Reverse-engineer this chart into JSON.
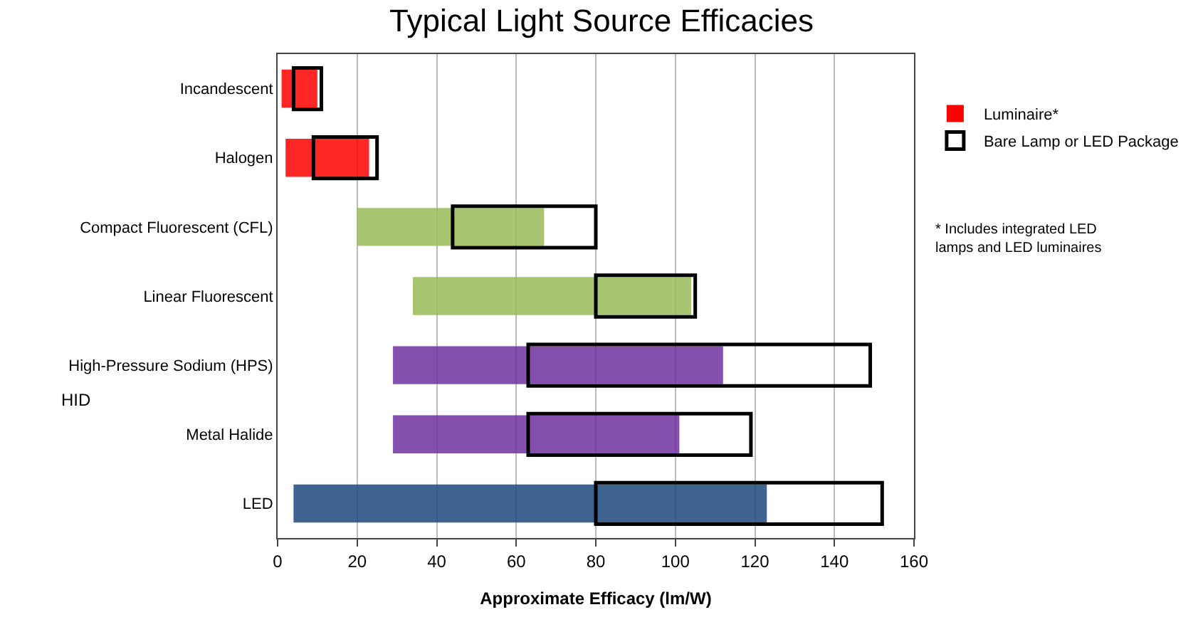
{
  "chart_data": {
    "type": "bar",
    "orientation": "horizontal",
    "title": "Typical Light Source Efficacies",
    "xlabel": "Approximate Efficacy (lm/W)",
    "categories": [
      "Incandescent",
      "Halogen",
      "Compact Fluorescent (CFL)",
      "Linear Fluorescent",
      "High-Pressure Sodium (HPS)",
      "Metal Halide",
      "LED"
    ],
    "series": [
      {
        "name": "Luminaire*",
        "colors": [
          "#ff0000",
          "#ff0000",
          "#9bbb59",
          "#9bbb59",
          "#7030a0",
          "#7030a0",
          "#1f497d"
        ],
        "base": [
          1,
          2,
          20,
          34,
          29,
          29,
          4
        ],
        "values": [
          9,
          21,
          47,
          70,
          83,
          72,
          119
        ]
      },
      {
        "name": "Bare Lamp or LED Package",
        "color": "#000000",
        "base": [
          4,
          9,
          44,
          80,
          63,
          63,
          80
        ],
        "values": [
          7,
          16,
          36,
          25,
          86,
          56,
          72
        ]
      }
    ],
    "xlim": [
      0,
      160
    ],
    "xticks": [
      0,
      20,
      40,
      60,
      80,
      100,
      120,
      140,
      160
    ],
    "grid": "x",
    "legend": "top right",
    "annotations": [
      "HID",
      "* Includes integrated LED lamps and LED luminaires"
    ]
  }
}
